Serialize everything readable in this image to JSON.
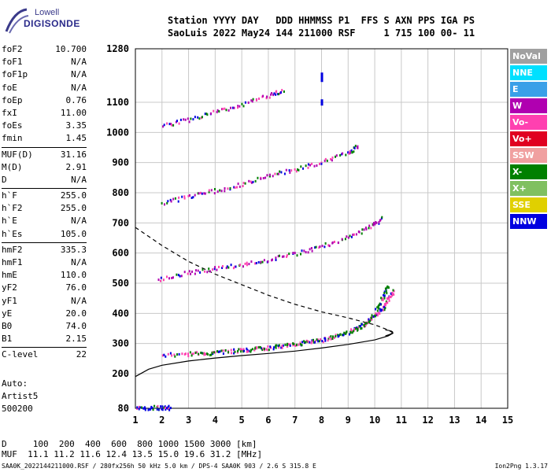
{
  "logo": {
    "line1": "Lowell",
    "line2": "DIGISONDE"
  },
  "header": {
    "line1": "Station YYYY DAY   DDD HHMMSS P1  FFS S AXN PPS IGA PS",
    "line2": "SaoLuis 2022 May24 144 211000 RSF     1 715 100 00- 11"
  },
  "params": [
    [
      {
        "k": "foF2",
        "v": "10.700"
      },
      {
        "k": "foF1",
        "v": "N/A"
      },
      {
        "k": "foF1p",
        "v": "N/A"
      },
      {
        "k": "foE",
        "v": "N/A"
      },
      {
        "k": "foEp",
        "v": "0.76"
      },
      {
        "k": "fxI",
        "v": "11.00"
      },
      {
        "k": "foEs",
        "v": "3.35"
      },
      {
        "k": "fmin",
        "v": "1.45"
      }
    ],
    [
      {
        "k": "MUF(D)",
        "v": "31.16"
      },
      {
        "k": "M(D)",
        "v": "2.91"
      },
      {
        "k": "D",
        "v": "N/A"
      }
    ],
    [
      {
        "k": "h`F",
        "v": "255.0"
      },
      {
        "k": "h`F2",
        "v": "255.0"
      },
      {
        "k": "h`E",
        "v": "N/A"
      },
      {
        "k": "h`Es",
        "v": "105.0"
      }
    ],
    [
      {
        "k": "hmF2",
        "v": "335.3"
      },
      {
        "k": "hmF1",
        "v": "N/A"
      },
      {
        "k": "hmE",
        "v": "110.0"
      },
      {
        "k": "yF2",
        "v": "76.0"
      },
      {
        "k": "yF1",
        "v": "N/A"
      },
      {
        "k": "yE",
        "v": "20.0"
      },
      {
        "k": "B0",
        "v": "74.0"
      },
      {
        "k": "B1",
        "v": "2.15"
      }
    ],
    [
      {
        "k": "C-level",
        "v": "22"
      }
    ]
  ],
  "auto": {
    "line1": "Auto:",
    "line2": "Artist5",
    "line3": "500200"
  },
  "footer": {
    "line1": "D     100  200  400  600  800 1000 1500 3000 [km]",
    "line2": "MUF  11.1 11.2 11.6 12.4 13.5 15.0 19.6 31.2 [MHz]"
  },
  "fileline": "SAA0K_2022144211000.RSF / 280fx256h 50 kHz 5.0 km / DPS-4 SAA0K 903 / 2.6 S 315.8 E",
  "version": "Ion2Png 1.3.17",
  "legend": [
    {
      "label": "NoVal",
      "color": "#a0a0a0"
    },
    {
      "label": "NNE",
      "color": "#00e0ff"
    },
    {
      "label": "E",
      "color": "#3aa0e8"
    },
    {
      "label": "W",
      "color": "#b000b0"
    },
    {
      "label": "Vo-",
      "color": "#ff40b0"
    },
    {
      "label": "Vo+",
      "color": "#e00020"
    },
    {
      "label": "SSW",
      "color": "#f0a0a0"
    },
    {
      "label": "X-",
      "color": "#008000"
    },
    {
      "label": "X+",
      "color": "#80c060"
    },
    {
      "label": "SSE",
      "color": "#e0d000"
    },
    {
      "label": "NNW",
      "color": "#0000e0"
    }
  ],
  "chart_data": {
    "type": "scatter",
    "xlim": [
      1,
      15
    ],
    "ylim": [
      80,
      1280
    ],
    "xticks": [
      "1",
      "2",
      "3",
      "4",
      "5",
      "6",
      "7",
      "8",
      "9",
      "10",
      "11",
      "12",
      "13",
      "14",
      "15"
    ],
    "yticks": [
      "80",
      "200",
      "300",
      "400",
      "500",
      "600",
      "700",
      "800",
      "900",
      "1000",
      "1100",
      "1280"
    ],
    "grid": true,
    "traces": [
      {
        "name": "o-trace F2",
        "color": "#ff40b0",
        "points": [
          [
            2.0,
            265
          ],
          [
            3.0,
            268
          ],
          [
            4.0,
            273
          ],
          [
            5.0,
            280
          ],
          [
            6.0,
            289
          ],
          [
            7.0,
            300
          ],
          [
            8.0,
            315
          ],
          [
            9.0,
            340
          ],
          [
            9.5,
            362
          ],
          [
            10.0,
            395
          ],
          [
            10.3,
            420
          ],
          [
            10.5,
            450
          ],
          [
            10.7,
            480
          ]
        ]
      },
      {
        "name": "x-trace F2",
        "color": "#008000",
        "points": [
          [
            3.0,
            268
          ],
          [
            4.5,
            276
          ],
          [
            5.5,
            285
          ],
          [
            6.5,
            295
          ],
          [
            7.5,
            308
          ],
          [
            8.5,
            325
          ],
          [
            9.3,
            350
          ],
          [
            9.8,
            380
          ],
          [
            10.1,
            420
          ],
          [
            10.3,
            460
          ],
          [
            10.5,
            495
          ]
        ]
      },
      {
        "name": "2nd hop",
        "color": "#b000b0",
        "points": [
          [
            1.8,
            515
          ],
          [
            3.0,
            538
          ],
          [
            4.0,
            552
          ],
          [
            5.0,
            565
          ],
          [
            6.0,
            580
          ],
          [
            7.0,
            600
          ],
          [
            8.0,
            625
          ],
          [
            9.0,
            655
          ],
          [
            9.8,
            690
          ],
          [
            10.3,
            720
          ]
        ]
      },
      {
        "name": "3rd hop",
        "color": "#b000b0",
        "points": [
          [
            2.0,
            770
          ],
          [
            3.0,
            790
          ],
          [
            4.0,
            810
          ],
          [
            5.0,
            830
          ],
          [
            6.0,
            860
          ],
          [
            7.0,
            880
          ],
          [
            8.0,
            905
          ],
          [
            9.0,
            935
          ],
          [
            9.4,
            960
          ]
        ]
      },
      {
        "name": "4th hop",
        "color": "#b000b0",
        "points": [
          [
            2.0,
            1025
          ],
          [
            3.0,
            1045
          ],
          [
            4.0,
            1070
          ],
          [
            5.0,
            1095
          ],
          [
            6.0,
            1125
          ],
          [
            6.6,
            1145
          ]
        ]
      },
      {
        "name": "Es",
        "color": "#0000e0",
        "points": [
          [
            1.0,
            85
          ],
          [
            1.5,
            85
          ],
          [
            2.0,
            85
          ],
          [
            2.3,
            85
          ]
        ]
      }
    ],
    "profile_solid": [
      [
        1.0,
        190
      ],
      [
        1.5,
        215
      ],
      [
        2.0,
        228
      ],
      [
        3.0,
        242
      ],
      [
        4.0,
        252
      ],
      [
        5.0,
        260
      ],
      [
        6.0,
        267
      ],
      [
        7.0,
        275
      ],
      [
        8.0,
        285
      ],
      [
        9.0,
        297
      ],
      [
        10.0,
        312
      ],
      [
        10.5,
        325
      ],
      [
        10.7,
        335
      ]
    ],
    "profile_dashed": [
      [
        1.0,
        685
      ],
      [
        2.0,
        625
      ],
      [
        3.0,
        572
      ],
      [
        4.0,
        530
      ],
      [
        5.0,
        495
      ],
      [
        6.0,
        460
      ],
      [
        7.0,
        430
      ],
      [
        8.0,
        405
      ],
      [
        9.0,
        385
      ],
      [
        10.0,
        362
      ],
      [
        10.5,
        345
      ],
      [
        10.7,
        335
      ]
    ]
  }
}
